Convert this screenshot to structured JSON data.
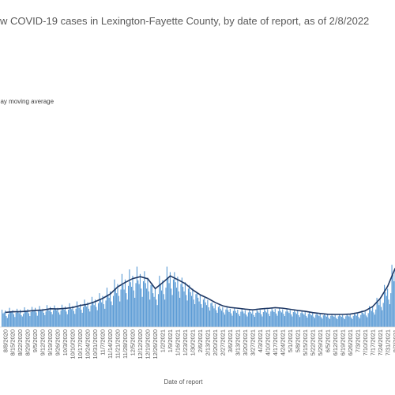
{
  "chart_data": {
    "type": "bar",
    "title": "w COVID-19 cases in Lexington-Fayette County, by date of report, as of 2/8/2022",
    "legend": [
      "day moving average"
    ],
    "xlabel": "Date of report",
    "ylabel": "",
    "grid": false,
    "colors": {
      "bars": "#5b9bd5",
      "average": "#1f3864"
    },
    "x_ticks": [
      "8/8/2020",
      "8/15/2020",
      "8/22/2020",
      "8/29/2020",
      "9/5/2020",
      "9/12/2020",
      "9/19/2020",
      "9/26/2020",
      "10/3/2020",
      "10/10/2020",
      "10/17/2020",
      "10/24/2020",
      "10/31/2020",
      "11/7/2020",
      "11/14/2020",
      "11/21/2020",
      "11/28/2020",
      "12/5/2020",
      "12/12/2020",
      "12/19/2020",
      "12/26/2020",
      "1/2/2021",
      "1/9/2021",
      "1/16/2021",
      "1/23/2021",
      "1/30/2021",
      "2/6/2021",
      "2/13/2021",
      "2/20/2021",
      "2/27/2021",
      "3/6/2021",
      "3/13/2021",
      "3/20/2021",
      "3/27/2021",
      "4/3/2021",
      "4/10/2021",
      "4/17/2021",
      "4/24/2021",
      "5/1/2021",
      "5/8/2021",
      "5/15/2021",
      "5/22/2021",
      "5/29/2021",
      "6/5/2021",
      "6/12/2021",
      "6/19/2021",
      "6/26/2021",
      "7/3/2021",
      "7/10/2021",
      "7/17/2021",
      "7/24/2021",
      "7/31/2021",
      "8/7/2021"
    ],
    "weekly_bars": [
      [
        95,
        75,
        80,
        90,
        60,
        50,
        70
      ],
      [
        105,
        80,
        85,
        92,
        70,
        55,
        78
      ],
      [
        100,
        88,
        76,
        95,
        65,
        58,
        72
      ],
      [
        108,
        90,
        85,
        98,
        75,
        60,
        82
      ],
      [
        110,
        88,
        92,
        105,
        80,
        62,
        88
      ],
      [
        115,
        95,
        88,
        100,
        78,
        65,
        85
      ],
      [
        120,
        98,
        90,
        110,
        82,
        70,
        92
      ],
      [
        118,
        100,
        92,
        105,
        80,
        68,
        90
      ],
      [
        122,
        102,
        95,
        112,
        85,
        70,
        95
      ],
      [
        130,
        105,
        98,
        115,
        88,
        72,
        100
      ],
      [
        140,
        115,
        105,
        125,
        95,
        78,
        110
      ],
      [
        150,
        122,
        112,
        135,
        100,
        85,
        118
      ],
      [
        165,
        135,
        120,
        150,
        110,
        92,
        130
      ],
      [
        185,
        150,
        135,
        170,
        125,
        100,
        145
      ],
      [
        215,
        175,
        160,
        195,
        140,
        120,
        170
      ],
      [
        260,
        210,
        185,
        235,
        170,
        140,
        205
      ],
      [
        290,
        230,
        205,
        260,
        185,
        150,
        225
      ],
      [
        315,
        245,
        220,
        280,
        200,
        160,
        240
      ],
      [
        330,
        255,
        235,
        290,
        210,
        165,
        250
      ],
      [
        305,
        240,
        210,
        270,
        195,
        150,
        230
      ],
      [
        240,
        185,
        165,
        215,
        150,
        120,
        180
      ],
      [
        280,
        230,
        200,
        255,
        180,
        150,
        215
      ],
      [
        330,
        270,
        240,
        300,
        210,
        175,
        260
      ],
      [
        300,
        245,
        215,
        275,
        195,
        160,
        235
      ],
      [
        270,
        220,
        195,
        245,
        175,
        145,
        210
      ],
      [
        230,
        190,
        170,
        210,
        150,
        125,
        180
      ],
      [
        190,
        160,
        140,
        175,
        125,
        105,
        150
      ],
      [
        160,
        135,
        120,
        148,
        108,
        90,
        130
      ],
      [
        135,
        115,
        102,
        125,
        92,
        78,
        110
      ],
      [
        118,
        100,
        90,
        108,
        80,
        68,
        96
      ],
      [
        108,
        92,
        82,
        100,
        75,
        62,
        88
      ],
      [
        102,
        88,
        78,
        95,
        70,
        60,
        84
      ],
      [
        98,
        85,
        75,
        92,
        68,
        58,
        80
      ],
      [
        96,
        82,
        74,
        90,
        66,
        56,
        78
      ],
      [
        100,
        85,
        78,
        94,
        70,
        58,
        82
      ],
      [
        104,
        88,
        80,
        97,
        72,
        60,
        85
      ],
      [
        106,
        90,
        82,
        99,
        74,
        62,
        87
      ],
      [
        104,
        88,
        80,
        97,
        72,
        60,
        85
      ],
      [
        100,
        85,
        77,
        93,
        69,
        58,
        82
      ],
      [
        94,
        80,
        72,
        88,
        65,
        55,
        77
      ],
      [
        88,
        75,
        68,
        82,
        61,
        52,
        72
      ],
      [
        82,
        70,
        64,
        77,
        57,
        49,
        68
      ],
      [
        76,
        66,
        60,
        72,
        54,
        46,
        64
      ],
      [
        72,
        63,
        57,
        68,
        51,
        44,
        61
      ],
      [
        70,
        61,
        56,
        66,
        50,
        43,
        59
      ],
      [
        70,
        61,
        56,
        66,
        50,
        43,
        59
      ],
      [
        72,
        63,
        58,
        68,
        52,
        44,
        61
      ],
      [
        78,
        68,
        62,
        74,
        55,
        47,
        66
      ],
      [
        90,
        78,
        70,
        85,
        63,
        54,
        76
      ],
      [
        115,
        98,
        88,
        108,
        80,
        68,
        96
      ],
      [
        160,
        135,
        120,
        150,
        110,
        92,
        132
      ],
      [
        230,
        190,
        170,
        210,
        150,
        125,
        185
      ],
      [
        340,
        285,
        250,
        320,
        230,
        190,
        280
      ]
    ],
    "moving_average": [
      80,
      84,
      84,
      87,
      91,
      93,
      100,
      99,
      102,
      107,
      118,
      125,
      139,
      157,
      181,
      220,
      244,
      265,
      275,
      264,
      210,
      243,
      279,
      259,
      237,
      203,
      176,
      157,
      134,
      116,
      107,
      103,
      98,
      94,
      99,
      102,
      106,
      103,
      97,
      91,
      86,
      79,
      74,
      70,
      69,
      69,
      71,
      78,
      89,
      112,
      156,
      223,
      322
    ],
    "ylim": [
      0,
      1700
    ]
  }
}
